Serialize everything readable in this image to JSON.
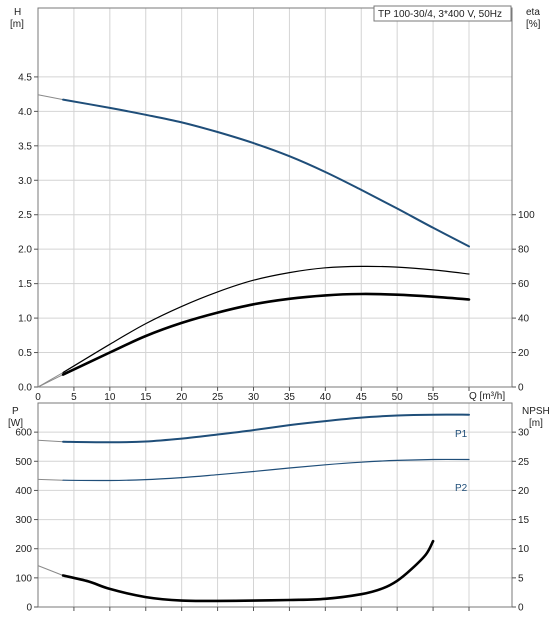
{
  "chart_data": [
    {
      "type": "line",
      "title": "TP 100-30/4, 3*400 V, 50Hz",
      "xlabel": "Q [m³/h]",
      "xlim": [
        0,
        60
      ],
      "x_ticks": [
        0,
        5,
        10,
        15,
        20,
        25,
        30,
        35,
        40,
        45,
        50,
        55
      ],
      "ylabel_left": [
        "H",
        "[m]"
      ],
      "ylim_left": [
        0,
        5.5
      ],
      "y_ticks_left": [
        "0.0",
        "0.5",
        "1.0",
        "1.5",
        "2.0",
        "2.5",
        "3.0",
        "3.5",
        "4.0",
        "4.5"
      ],
      "ylabel_right": [
        "eta",
        "[%]"
      ],
      "ylim_right": [
        0,
        220
      ],
      "y_ticks_right": [
        "0",
        "20",
        "40",
        "60",
        "80",
        "100"
      ],
      "grid": true,
      "series": [
        {
          "axis": "left",
          "color": "#1f4e79",
          "width": 2,
          "x": [
            3.5,
            10,
            15,
            20,
            25,
            30,
            35,
            40,
            45,
            50,
            55,
            60
          ],
          "y": [
            4.17,
            4.05,
            3.95,
            3.84,
            3.7,
            3.54,
            3.35,
            3.12,
            2.86,
            2.59,
            2.31,
            2.04
          ],
          "ext_x": [
            0,
            3.5
          ],
          "ext_y": [
            4.24,
            4.17
          ]
        },
        {
          "axis": "left",
          "color": "#000000",
          "width": 1.2,
          "x": [
            3.5,
            10,
            15,
            20,
            25,
            30,
            35,
            40,
            45,
            50,
            55,
            60
          ],
          "y": [
            0.21,
            0.62,
            0.92,
            1.17,
            1.38,
            1.55,
            1.66,
            1.73,
            1.75,
            1.74,
            1.7,
            1.64
          ],
          "ext_x": [
            0,
            3.5
          ],
          "ext_y": [
            0.0,
            0.21
          ]
        },
        {
          "axis": "left",
          "color": "#000000",
          "width": 2.6,
          "x": [
            3.5,
            10,
            15,
            20,
            25,
            30,
            35,
            40,
            45,
            50,
            55,
            60
          ],
          "y": [
            0.18,
            0.5,
            0.74,
            0.93,
            1.08,
            1.2,
            1.28,
            1.33,
            1.35,
            1.34,
            1.31,
            1.27
          ],
          "ext_x": [
            0,
            3.5
          ],
          "ext_y": [
            0.0,
            0.18
          ]
        }
      ]
    },
    {
      "type": "line",
      "xlim": [
        0,
        60
      ],
      "ylabel_left": [
        "P",
        "[W]"
      ],
      "ylim_left": [
        0,
        700
      ],
      "y_ticks_left": [
        "0",
        "100",
        "200",
        "300",
        "400",
        "500",
        "600"
      ],
      "ylabel_right": [
        "NPSH",
        "[m]"
      ],
      "ylim_right": [
        0,
        35
      ],
      "y_ticks_right": [
        "0",
        "5",
        "10",
        "15",
        "20",
        "25",
        "30"
      ],
      "grid": true,
      "series": [
        {
          "name": "P1",
          "axis": "left",
          "color": "#1f4e79",
          "width": 2,
          "x": [
            3.5,
            10,
            15,
            20,
            25,
            30,
            35,
            40,
            45,
            50,
            55,
            60
          ],
          "y": [
            567,
            565,
            568,
            578,
            592,
            607,
            624,
            638,
            650,
            657,
            660,
            660
          ],
          "ext_x": [
            0,
            3.5
          ],
          "ext_y": [
            572,
            567
          ]
        },
        {
          "name": "P2",
          "axis": "left",
          "color": "#1f4e79",
          "width": 1.2,
          "x": [
            3.5,
            10,
            15,
            20,
            25,
            30,
            35,
            40,
            45,
            50,
            55,
            60
          ],
          "y": [
            435,
            434,
            437,
            444,
            454,
            465,
            477,
            488,
            497,
            503,
            506,
            506
          ],
          "ext_x": [
            0,
            3.5
          ],
          "ext_y": [
            438,
            435
          ]
        },
        {
          "axis": "right",
          "color": "#000000",
          "width": 2.6,
          "x": [
            3.5,
            7,
            10,
            15,
            20,
            25,
            30,
            35,
            40,
            45,
            48,
            50,
            52,
            54,
            55
          ],
          "y": [
            5.4,
            4.4,
            3.1,
            1.7,
            1.1,
            1.05,
            1.1,
            1.2,
            1.4,
            2.2,
            3.2,
            4.5,
            6.5,
            9.0,
            11.3
          ],
          "ext_x": [
            0,
            3.5
          ],
          "ext_y": [
            7.1,
            5.4
          ]
        }
      ]
    }
  ]
}
